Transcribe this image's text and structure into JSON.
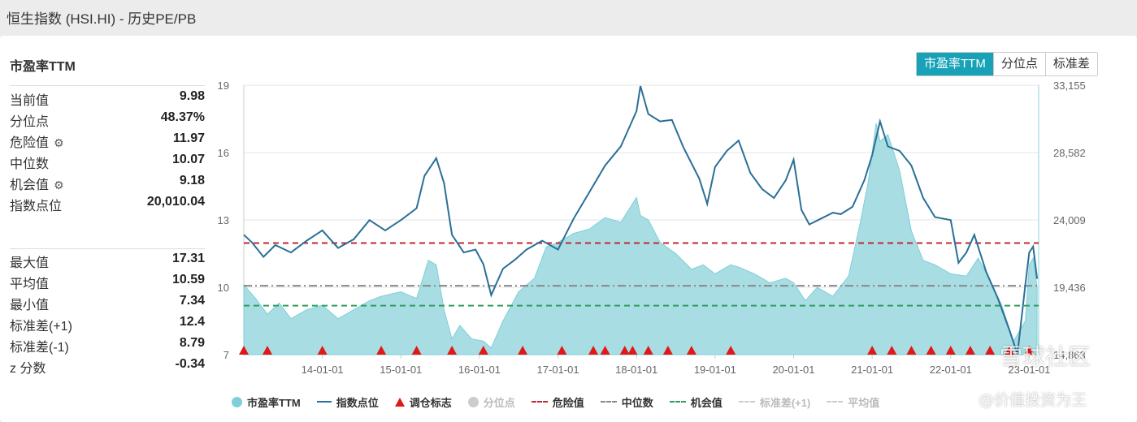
{
  "page": {
    "title": "恒生指数 (HSI.HI) - 历史PE/PB"
  },
  "metric": {
    "title": "市盈率TTM"
  },
  "stats_top": [
    {
      "label": "当前值",
      "value": "9.98",
      "gear": false
    },
    {
      "label": "分位点",
      "value": "48.37%",
      "gear": false
    },
    {
      "label": "危险值",
      "value": "11.97",
      "gear": true
    },
    {
      "label": "中位数",
      "value": "10.07",
      "gear": false
    },
    {
      "label": "机会值",
      "value": "9.18",
      "gear": true
    },
    {
      "label": "指数点位",
      "value": "20,010.04",
      "gear": false
    }
  ],
  "stats_bottom": [
    {
      "label": "最大值",
      "value": "17.31"
    },
    {
      "label": "平均值",
      "value": "10.59"
    },
    {
      "label": "最小值",
      "value": "7.34"
    },
    {
      "label": "标准差(+1)",
      "value": "12.4"
    },
    {
      "label": "标准差(-1)",
      "value": "8.79"
    },
    {
      "label": "z 分数",
      "value": "-0.34"
    }
  ],
  "tabs": [
    {
      "label": "市盈率TTM",
      "active": true
    },
    {
      "label": "分位点",
      "active": false
    },
    {
      "label": "标准差",
      "active": false
    }
  ],
  "legend": [
    {
      "label": "市盈率TTM",
      "marker": "circle",
      "color": "#7ecfd9",
      "muted": false
    },
    {
      "label": "指数点位",
      "marker": "line",
      "color": "#2a6f97",
      "muted": false
    },
    {
      "label": "调仓标志",
      "marker": "triangle",
      "color": "#e01818",
      "muted": false
    },
    {
      "label": "分位点",
      "marker": "circle",
      "color": "#cccccc",
      "muted": true
    },
    {
      "label": "危险值",
      "marker": "dash",
      "color": "#c0282d",
      "muted": false
    },
    {
      "label": "中位数",
      "marker": "dashdot",
      "color": "#888888",
      "muted": false
    },
    {
      "label": "机会值",
      "marker": "dash",
      "color": "#2e9e5b",
      "muted": false
    },
    {
      "label": "标准差(+1)",
      "marker": "dashdot",
      "color": "#cccccc",
      "muted": true
    },
    {
      "label": "平均值",
      "marker": "dashdot",
      "color": "#cccccc",
      "muted": true
    }
  ],
  "watermark": {
    "text1": "雪球社区",
    "text2": "@价值投资为王"
  },
  "chart_data": {
    "type": "area",
    "x_ticks": [
      "14-01-01",
      "15-01-01",
      "16-01-01",
      "17-01-01",
      "18-01-01",
      "19-01-01",
      "20-01-01",
      "21-01-01",
      "22-01-01",
      "23-01-01"
    ],
    "x_range": [
      "2013-01-01",
      "2023-02-15"
    ],
    "ylim_left": [
      7,
      19
    ],
    "yticks_left": [
      "19",
      "16",
      "13",
      "10",
      "7"
    ],
    "ylim_right": [
      14863,
      33155
    ],
    "yticks_right": [
      "33,155",
      "28,582",
      "24,009",
      "19,436",
      "14,863"
    ],
    "reference_lines": [
      {
        "name": "危险值",
        "value": 11.97,
        "color": "#c0282d"
      },
      {
        "name": "中位数",
        "value": 10.07,
        "color": "#888888"
      },
      {
        "name": "机会值",
        "value": 9.18,
        "color": "#2e9e5b"
      }
    ],
    "series": [
      {
        "name": "市盈率TTM",
        "axis": "left",
        "color": "#7ecfd9",
        "x": [
          2013.0,
          2013.15,
          2013.3,
          2013.45,
          2013.6,
          2013.8,
          2014.0,
          2014.2,
          2014.4,
          2014.6,
          2014.75,
          2015.0,
          2015.2,
          2015.35,
          2015.45,
          2015.55,
          2015.65,
          2015.75,
          2015.9,
          2016.05,
          2016.15,
          2016.3,
          2016.5,
          2016.7,
          2016.85,
          2017.0,
          2017.2,
          2017.4,
          2017.6,
          2017.8,
          2018.0,
          2018.05,
          2018.15,
          2018.3,
          2018.5,
          2018.7,
          2018.85,
          2019.0,
          2019.2,
          2019.3,
          2019.5,
          2019.7,
          2019.9,
          2020.0,
          2020.15,
          2020.3,
          2020.5,
          2020.7,
          2020.85,
          2020.95,
          2021.05,
          2021.1,
          2021.2,
          2021.35,
          2021.5,
          2021.65,
          2021.8,
          2022.0,
          2022.2,
          2022.35,
          2022.5,
          2022.65,
          2022.8,
          2022.95,
          2023.0,
          2023.05,
          2023.1
        ],
        "values": [
          10.1,
          9.5,
          8.8,
          9.3,
          8.6,
          9.0,
          9.2,
          8.6,
          9.0,
          9.4,
          9.6,
          9.8,
          9.5,
          11.2,
          11.0,
          9.0,
          7.7,
          8.3,
          7.7,
          7.6,
          7.3,
          8.5,
          9.8,
          10.4,
          11.8,
          12.0,
          12.4,
          12.6,
          13.1,
          12.9,
          14.0,
          13.2,
          13.0,
          12.0,
          11.5,
          10.8,
          11.0,
          10.6,
          11.0,
          10.9,
          10.6,
          10.2,
          10.4,
          10.2,
          9.4,
          10.0,
          9.6,
          10.5,
          12.9,
          14.7,
          17.3,
          16.5,
          16.8,
          15.2,
          12.5,
          11.2,
          11.0,
          10.6,
          10.5,
          11.3,
          10.3,
          9.2,
          7.6,
          8.5,
          11.0,
          11.3,
          10.0
        ]
      },
      {
        "name": "指数点位",
        "axis": "right",
        "color": "#2a6f97",
        "x": [
          2013.0,
          2013.1,
          2013.25,
          2013.4,
          2013.6,
          2013.8,
          2014.0,
          2014.2,
          2014.4,
          2014.6,
          2014.8,
          2015.0,
          2015.2,
          2015.3,
          2015.45,
          2015.55,
          2015.65,
          2015.8,
          2015.95,
          2016.05,
          2016.15,
          2016.3,
          2016.45,
          2016.6,
          2016.8,
          2017.0,
          2017.2,
          2017.4,
          2017.6,
          2017.8,
          2018.0,
          2018.05,
          2018.15,
          2018.3,
          2018.45,
          2018.6,
          2018.8,
          2018.9,
          2019.0,
          2019.15,
          2019.3,
          2019.45,
          2019.6,
          2019.75,
          2019.9,
          2020.0,
          2020.1,
          2020.2,
          2020.35,
          2020.5,
          2020.6,
          2020.75,
          2020.9,
          2021.0,
          2021.1,
          2021.2,
          2021.35,
          2021.5,
          2021.65,
          2021.8,
          2022.0,
          2022.1,
          2022.2,
          2022.3,
          2022.45,
          2022.6,
          2022.75,
          2022.85,
          2022.95,
          2023.0,
          2023.05,
          2023.1
        ],
        "values": [
          23000,
          22500,
          21500,
          22300,
          21800,
          22600,
          23300,
          22100,
          22700,
          24000,
          23300,
          24000,
          24800,
          27000,
          28200,
          26500,
          23000,
          21800,
          22000,
          21000,
          18900,
          20700,
          21300,
          22000,
          22600,
          22000,
          24100,
          25900,
          27700,
          29000,
          31400,
          33100,
          31200,
          30700,
          30800,
          28900,
          26800,
          25100,
          27600,
          28700,
          29400,
          27200,
          26100,
          25500,
          26700,
          28100,
          24700,
          23700,
          24100,
          24500,
          24400,
          24900,
          26700,
          28400,
          30700,
          29000,
          28700,
          27700,
          25500,
          24200,
          24000,
          21100,
          21800,
          23000,
          20500,
          18700,
          16500,
          14900,
          19600,
          21800,
          22200,
          20010
        ]
      },
      {
        "name": "调仓标志",
        "axis": "marker",
        "x": [
          2013.0,
          2013.3,
          2014.0,
          2014.75,
          2015.2,
          2015.65,
          2016.05,
          2016.55,
          2017.05,
          2017.45,
          2017.6,
          2017.85,
          2017.95,
          2018.15,
          2018.4,
          2018.7,
          2019.2,
          2021.0,
          2021.25,
          2021.5,
          2021.75,
          2022.0,
          2022.25,
          2022.5,
          2022.75,
          2023.0
        ]
      }
    ]
  }
}
